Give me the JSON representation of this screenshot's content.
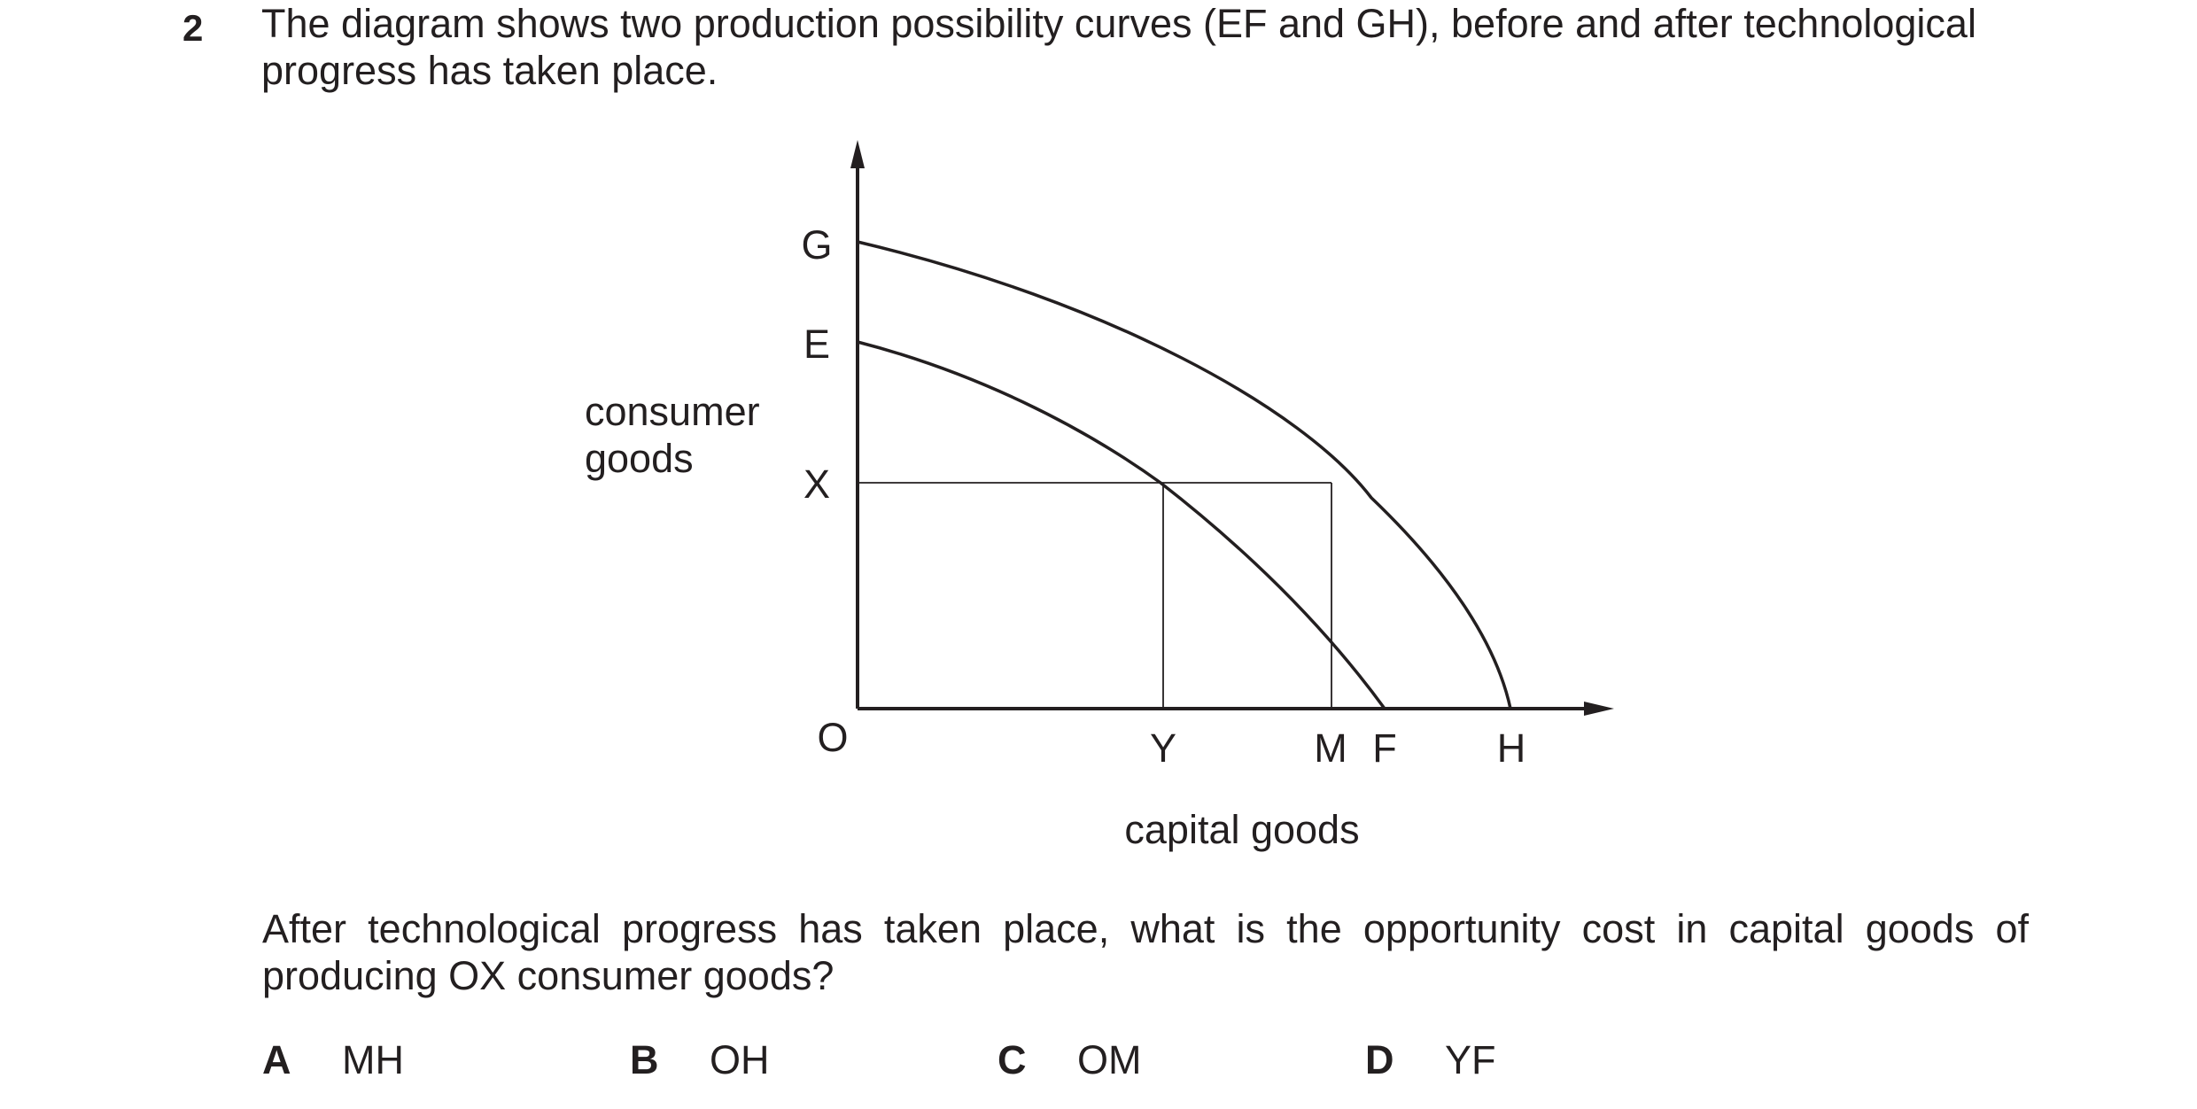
{
  "question": {
    "number": "2",
    "stem_line1": "The diagram shows two production possibility curves (EF and GH), before and after technological",
    "stem_line2": "progress has taken place.",
    "prompt_line1": "After technological progress has taken place, what is the opportunity cost in capital goods of",
    "prompt_line2": "producing OX consumer goods?"
  },
  "diagram": {
    "y_axis_label_line1": "consumer",
    "y_axis_label_line2": "goods",
    "x_axis_label": "capital goods",
    "origin_label": "O",
    "y_points": [
      "G",
      "E",
      "X"
    ],
    "x_points": [
      "Y",
      "M",
      "F",
      "H"
    ],
    "curves": [
      {
        "name": "EF",
        "from": "E",
        "to": "F"
      },
      {
        "name": "GH",
        "from": "G",
        "to": "H"
      }
    ]
  },
  "options": [
    {
      "letter": "A",
      "text": "MH"
    },
    {
      "letter": "B",
      "text": "OH"
    },
    {
      "letter": "C",
      "text": "OM"
    },
    {
      "letter": "D",
      "text": "YF"
    }
  ]
}
